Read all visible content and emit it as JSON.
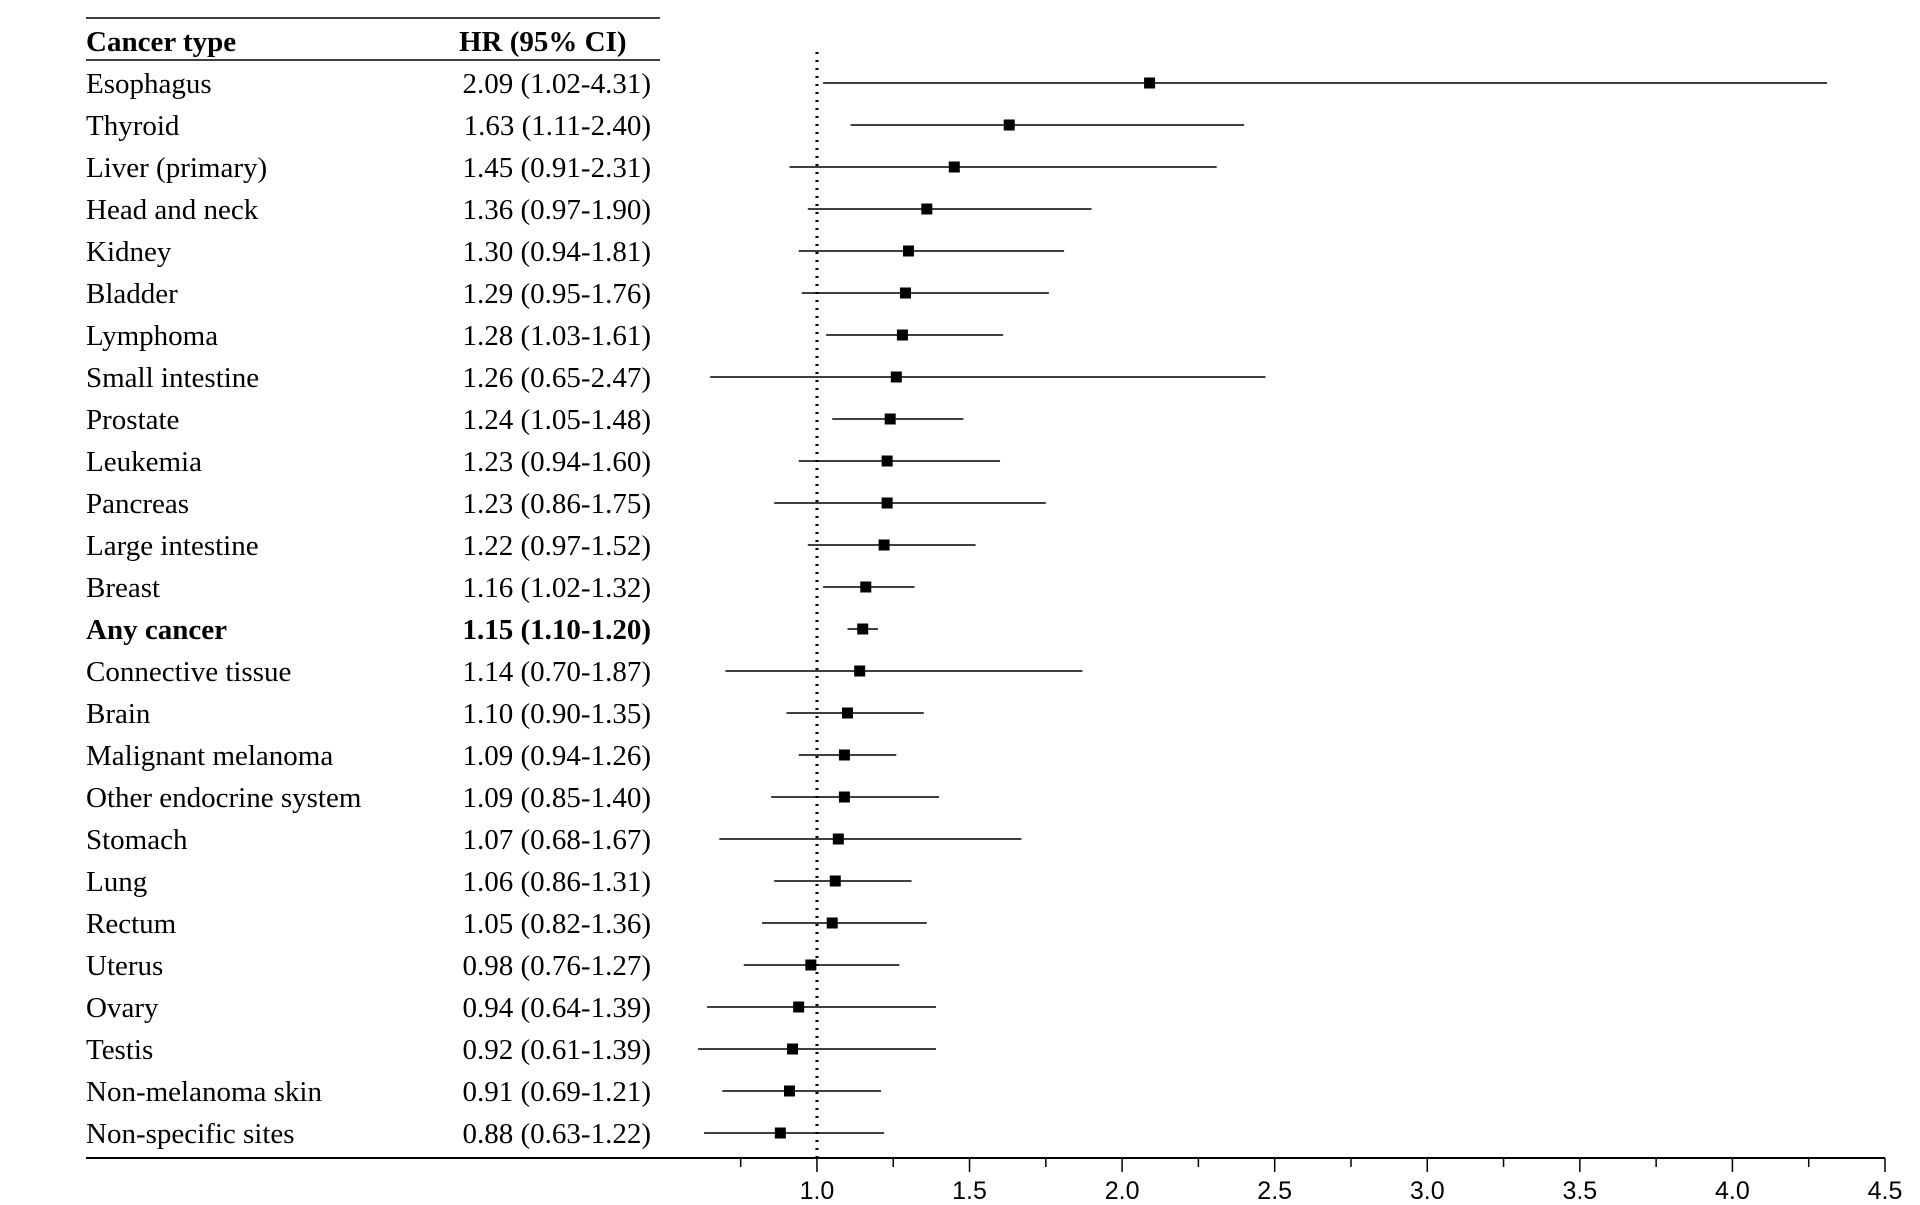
{
  "chart_data": {
    "type": "forest",
    "columns": {
      "label": "Cancer type",
      "estimate": "HR (95% CI)"
    },
    "reference_value": 1.0,
    "xlim": [
      0.62,
      4.5
    ],
    "xticks": [
      1.0,
      1.5,
      2.0,
      2.5,
      3.0,
      3.5,
      4.0,
      4.5
    ],
    "xtick_labels": [
      "1.0",
      "1.5",
      "2.0",
      "2.5",
      "3.0",
      "3.5",
      "4.0",
      "4.5"
    ],
    "xminor_ticks": [
      0.75,
      1.25,
      1.75,
      2.25,
      2.75,
      3.25,
      3.75,
      4.25
    ],
    "rows": [
      {
        "label": "Esophagus",
        "hr": 2.09,
        "lo": 1.02,
        "hi": 4.31,
        "text": "2.09 (1.02-4.31)",
        "bold": false
      },
      {
        "label": "Thyroid",
        "hr": 1.63,
        "lo": 1.11,
        "hi": 2.4,
        "text": "1.63 (1.11-2.40)",
        "bold": false
      },
      {
        "label": "Liver (primary)",
        "hr": 1.45,
        "lo": 0.91,
        "hi": 2.31,
        "text": "1.45 (0.91-2.31)",
        "bold": false
      },
      {
        "label": "Head and neck",
        "hr": 1.36,
        "lo": 0.97,
        "hi": 1.9,
        "text": "1.36 (0.97-1.90)",
        "bold": false
      },
      {
        "label": "Kidney",
        "hr": 1.3,
        "lo": 0.94,
        "hi": 1.81,
        "text": "1.30 (0.94-1.81)",
        "bold": false
      },
      {
        "label": "Bladder",
        "hr": 1.29,
        "lo": 0.95,
        "hi": 1.76,
        "text": "1.29 (0.95-1.76)",
        "bold": false
      },
      {
        "label": "Lymphoma",
        "hr": 1.28,
        "lo": 1.03,
        "hi": 1.61,
        "text": "1.28 (1.03-1.61)",
        "bold": false
      },
      {
        "label": "Small intestine",
        "hr": 1.26,
        "lo": 0.65,
        "hi": 2.47,
        "text": "1.26 (0.65-2.47)",
        "bold": false
      },
      {
        "label": "Prostate",
        "hr": 1.24,
        "lo": 1.05,
        "hi": 1.48,
        "text": "1.24 (1.05-1.48)",
        "bold": false
      },
      {
        "label": "Leukemia",
        "hr": 1.23,
        "lo": 0.94,
        "hi": 1.6,
        "text": "1.23 (0.94-1.60)",
        "bold": false
      },
      {
        "label": "Pancreas",
        "hr": 1.23,
        "lo": 0.86,
        "hi": 1.75,
        "text": "1.23 (0.86-1.75)",
        "bold": false
      },
      {
        "label": "Large intestine",
        "hr": 1.22,
        "lo": 0.97,
        "hi": 1.52,
        "text": "1.22 (0.97-1.52)",
        "bold": false
      },
      {
        "label": "Breast",
        "hr": 1.16,
        "lo": 1.02,
        "hi": 1.32,
        "text": "1.16 (1.02-1.32)",
        "bold": false
      },
      {
        "label": "Any cancer",
        "hr": 1.15,
        "lo": 1.1,
        "hi": 1.2,
        "text": "1.15 (1.10-1.20)",
        "bold": true
      },
      {
        "label": "Connective tissue",
        "hr": 1.14,
        "lo": 0.7,
        "hi": 1.87,
        "text": "1.14 (0.70-1.87)",
        "bold": false
      },
      {
        "label": "Brain",
        "hr": 1.1,
        "lo": 0.9,
        "hi": 1.35,
        "text": "1.10 (0.90-1.35)",
        "bold": false
      },
      {
        "label": "Malignant melanoma",
        "hr": 1.09,
        "lo": 0.94,
        "hi": 1.26,
        "text": "1.09 (0.94-1.26)",
        "bold": false
      },
      {
        "label": "Other endocrine system",
        "hr": 1.09,
        "lo": 0.85,
        "hi": 1.4,
        "text": "1.09 (0.85-1.40)",
        "bold": false
      },
      {
        "label": "Stomach",
        "hr": 1.07,
        "lo": 0.68,
        "hi": 1.67,
        "text": "1.07 (0.68-1.67)",
        "bold": false
      },
      {
        "label": "Lung",
        "hr": 1.06,
        "lo": 0.86,
        "hi": 1.31,
        "text": "1.06 (0.86-1.31)",
        "bold": false
      },
      {
        "label": "Rectum",
        "hr": 1.05,
        "lo": 0.82,
        "hi": 1.36,
        "text": "1.05 (0.82-1.36)",
        "bold": false
      },
      {
        "label": "Uterus",
        "hr": 0.98,
        "lo": 0.76,
        "hi": 1.27,
        "text": "0.98 (0.76-1.27)",
        "bold": false
      },
      {
        "label": "Ovary",
        "hr": 0.94,
        "lo": 0.64,
        "hi": 1.39,
        "text": "0.94 (0.64-1.39)",
        "bold": false
      },
      {
        "label": "Testis",
        "hr": 0.92,
        "lo": 0.61,
        "hi": 1.39,
        "text": "0.92 (0.61-1.39)",
        "bold": false
      },
      {
        "label": "Non-melanoma skin",
        "hr": 0.91,
        "lo": 0.69,
        "hi": 1.21,
        "text": "0.91 (0.69-1.21)",
        "bold": false
      },
      {
        "label": "Non-specific sites",
        "hr": 0.88,
        "lo": 0.63,
        "hi": 1.22,
        "text": "0.88 (0.63-1.22)",
        "bold": false
      }
    ]
  }
}
